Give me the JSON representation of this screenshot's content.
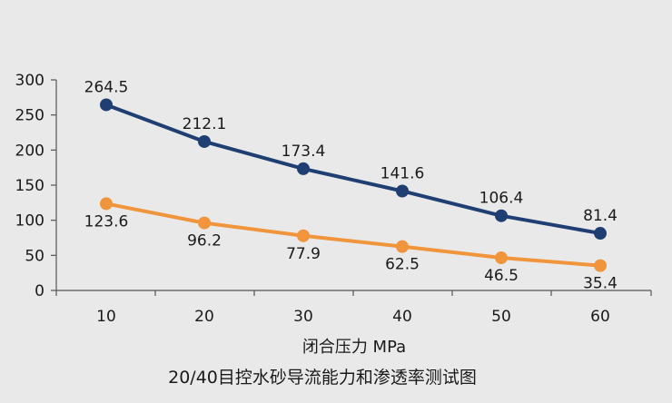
{
  "chart_data": {
    "type": "line",
    "categories": [
      "10",
      "20",
      "30",
      "40",
      "50",
      "60"
    ],
    "series": [
      {
        "values": [
          264.5,
          212.1,
          173.4,
          141.6,
          106.4,
          81.4
        ],
        "color": "#1f3f73"
      },
      {
        "values": [
          123.6,
          96.2,
          77.9,
          62.5,
          46.5,
          35.4
        ],
        "color": "#f0953c"
      }
    ],
    "title": "20/40目控水砂导流能力和渗透率测试图",
    "xlabel": "闭合压力 MPa",
    "ylabel": "",
    "ylim": [
      0,
      300
    ],
    "yticks": [
      "0",
      "50",
      "100",
      "150",
      "200",
      "250",
      "300"
    ],
    "grid": false,
    "legend": "none"
  }
}
